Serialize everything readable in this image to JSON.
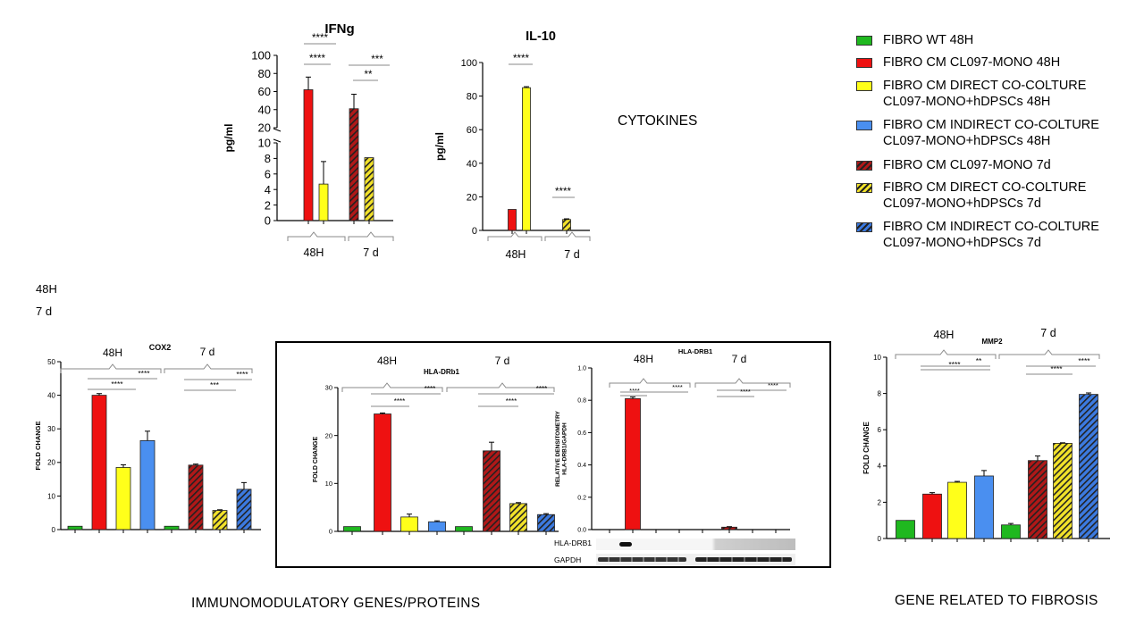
{
  "legend": [
    {
      "label": "FIBRO WT 48H",
      "key": "wt48"
    },
    {
      "label": "FIBRO CM CL097-MONO 48H",
      "key": "mono48"
    },
    {
      "label": "FIBRO  CM DIRECT CO-COLTURE\nCL097-MONO+hDPSCs 48H",
      "key": "dir48"
    },
    {
      "label": "FIBRO  CM INDIRECT CO-COLTURE\nCL097-MONO+hDPSCs 48H",
      "key": "ind48"
    },
    {
      "label": "FIBRO CM CL097-MONO 7d",
      "key": "mono7"
    },
    {
      "label": "FIBRO  CM DIRECT CO-COLTURE\nCL097-MONO+hDPSCs 7d",
      "key": "dir7"
    },
    {
      "label": "FIBRO  CM INDIRECT CO-COLTURE\nCL097-MONO+hDPSCs 7d",
      "key": "ind7"
    }
  ],
  "colors": {
    "wt48": "#1fb81f",
    "mono48": "#ee1111",
    "dir48": "#ffff1a",
    "ind48": "#4a8ff0",
    "mono7": "#b01818",
    "dir7": "#f2e22a",
    "ind7": "#3c7ae0",
    "stripe": "#222222"
  },
  "texts": {
    "cytokines": "CYTOKINES",
    "immuno": "IMMUNOMODULATORY   GENES/PROTEINS",
    "fibrosis": "GENE RELATED  TO FIBROSIS",
    "time_48": "48H",
    "time_7": "7 d",
    "wb_hla": "HLA-DRB1",
    "wb_gapdh": "GAPDH"
  },
  "chart_data": [
    {
      "id": "ifng",
      "type": "bar",
      "title": "IFNg",
      "ylabel": "pg/ml",
      "broken_axis": true,
      "ylim_lower": [
        0,
        10
      ],
      "ylim_upper": [
        20,
        100
      ],
      "yticks_lower": [
        0,
        2,
        4,
        6,
        8,
        10
      ],
      "yticks_upper": [
        20,
        40,
        60,
        80,
        100
      ],
      "groups": [
        "48H",
        "7 d"
      ],
      "bars": [
        {
          "series": "mono48",
          "value": 62,
          "error": 14
        },
        {
          "series": "dir48",
          "value": 4.7,
          "error": 2.9
        },
        {
          "series": "mono7",
          "value": 41,
          "error": 16
        },
        {
          "series": "dir7",
          "value": 8.1,
          "error": 0
        }
      ],
      "significance": [
        "****",
        "****",
        "***",
        "**"
      ]
    },
    {
      "id": "il10",
      "type": "bar",
      "title": "IL-10",
      "ylabel": "pg/ml",
      "ylim": [
        0,
        100
      ],
      "yticks": [
        0,
        20,
        40,
        60,
        80,
        100
      ],
      "groups": [
        "48H",
        "7 d"
      ],
      "bars": [
        {
          "series": "mono48",
          "value": 12.5,
          "error": 0
        },
        {
          "series": "dir48",
          "value": 85,
          "error": 0.6
        },
        {
          "series": "dir7",
          "value": 6.5,
          "error": 0.4
        }
      ],
      "significance": [
        "****",
        "****"
      ]
    },
    {
      "id": "cox2",
      "type": "bar",
      "title": "COX2",
      "ylabel": "FOLD CHANGE",
      "ylim": [
        0,
        50
      ],
      "yticks": [
        0,
        10,
        20,
        30,
        40,
        50
      ],
      "groups": [
        "48H",
        "7 d"
      ],
      "bars": [
        {
          "series": "wt48",
          "value": 1,
          "error": 0
        },
        {
          "series": "mono48",
          "value": 40,
          "error": 0.5
        },
        {
          "series": "dir48",
          "value": 18.5,
          "error": 0.8
        },
        {
          "series": "ind48",
          "value": 26.5,
          "error": 2.8
        },
        {
          "series": "wt48",
          "value": 1,
          "error": 0
        },
        {
          "series": "mono7",
          "value": 19.2,
          "error": 0.3
        },
        {
          "series": "dir7",
          "value": 5.7,
          "error": 0.2
        },
        {
          "series": "ind7",
          "value": 12,
          "error": 2
        }
      ],
      "significance": [
        "****",
        "****",
        "****",
        "***",
        "****"
      ]
    },
    {
      "id": "hla_drb1_gene",
      "type": "bar",
      "title": "HLA-DRb1",
      "ylabel": "FOLD CHANGE",
      "ylim": [
        0,
        30
      ],
      "yticks": [
        0,
        10,
        20,
        30
      ],
      "groups": [
        "48H",
        "7 d"
      ],
      "bars": [
        {
          "series": "wt48",
          "value": 1,
          "error": 0
        },
        {
          "series": "mono48",
          "value": 24.5,
          "error": 0.2
        },
        {
          "series": "dir48",
          "value": 3,
          "error": 0.6
        },
        {
          "series": "ind48",
          "value": 2,
          "error": 0.2
        },
        {
          "series": "wt48",
          "value": 1,
          "error": 0
        },
        {
          "series": "mono7",
          "value": 16.8,
          "error": 1.8
        },
        {
          "series": "dir7",
          "value": 5.8,
          "error": 0.2
        },
        {
          "series": "ind7",
          "value": 3.5,
          "error": 0.2
        }
      ],
      "significance": [
        "****",
        "****",
        "****",
        "****"
      ]
    },
    {
      "id": "hla_drb1_protein",
      "type": "bar",
      "title": "HLA-DRB1",
      "ylabel": "RELATIVE  DENSITOMETRY\nHLA-DRB1/GAPDH",
      "ylim": [
        0,
        1.0
      ],
      "yticks": [
        0.0,
        0.2,
        0.4,
        0.6,
        0.8,
        1.0
      ],
      "groups": [
        "48H",
        "7 d"
      ],
      "bars": [
        {
          "series": "wt48",
          "value": 0,
          "error": 0
        },
        {
          "series": "mono48",
          "value": 0.81,
          "error": 0.01
        },
        {
          "series": "dir48",
          "value": 0,
          "error": 0
        },
        {
          "series": "ind48",
          "value": 0,
          "error": 0
        },
        {
          "series": "wt48",
          "value": 0,
          "error": 0
        },
        {
          "series": "mono7",
          "value": 0.015,
          "error": 0.003
        },
        {
          "series": "dir7",
          "value": 0,
          "error": 0
        },
        {
          "series": "ind7",
          "value": 0,
          "error": 0
        }
      ],
      "significance": [
        "****",
        "****",
        "****",
        "****"
      ]
    },
    {
      "id": "mmp2",
      "type": "bar",
      "title": "MMP2",
      "ylabel": "FOLD CHANGE",
      "ylim": [
        0,
        10
      ],
      "yticks": [
        0,
        2,
        4,
        6,
        8,
        10
      ],
      "groups": [
        "48H",
        "7 d"
      ],
      "bars": [
        {
          "series": "wt48",
          "value": 1,
          "error": 0
        },
        {
          "series": "mono48",
          "value": 2.45,
          "error": 0.08
        },
        {
          "series": "dir48",
          "value": 3.1,
          "error": 0.05
        },
        {
          "series": "ind48",
          "value": 3.45,
          "error": 0.3
        },
        {
          "series": "wt48",
          "value": 0.75,
          "error": 0.08
        },
        {
          "series": "mono7",
          "value": 4.3,
          "error": 0.25
        },
        {
          "series": "dir7",
          "value": 5.25,
          "error": 0.03
        },
        {
          "series": "ind7",
          "value": 7.95,
          "error": 0.08
        }
      ],
      "significance": [
        "**",
        "****",
        "****",
        "****"
      ]
    }
  ]
}
